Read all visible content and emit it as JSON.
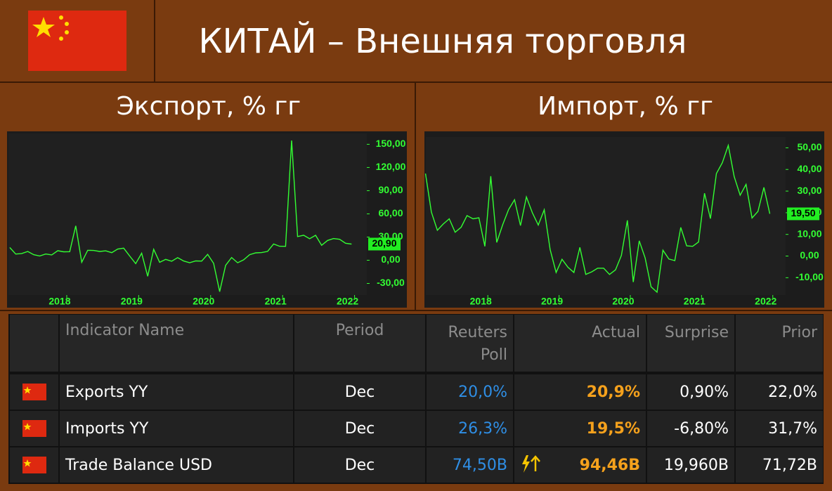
{
  "header": {
    "title": "КИТАЙ – Внешняя торговля"
  },
  "chart_data": [
    {
      "type": "line",
      "title": "Экспорт, % гг",
      "color": "#33ff33",
      "x": [
        "2017-03",
        "2017-04",
        "2017-05",
        "2017-06",
        "2017-07",
        "2017-08",
        "2017-09",
        "2017-10",
        "2017-11",
        "2017-12",
        "2018-01",
        "2018-02",
        "2018-03",
        "2018-04",
        "2018-05",
        "2018-06",
        "2018-07",
        "2018-08",
        "2018-09",
        "2018-10",
        "2018-11",
        "2018-12",
        "2019-01",
        "2019-02",
        "2019-03",
        "2019-04",
        "2019-05",
        "2019-06",
        "2019-07",
        "2019-08",
        "2019-09",
        "2019-10",
        "2019-11",
        "2019-12",
        "2020-01",
        "2020-02",
        "2020-03",
        "2020-04",
        "2020-05",
        "2020-06",
        "2020-07",
        "2020-08",
        "2020-09",
        "2020-10",
        "2020-11",
        "2020-12",
        "2021-01",
        "2021-02",
        "2021-03",
        "2021-04",
        "2021-05",
        "2021-06",
        "2021-07",
        "2021-08",
        "2021-09",
        "2021-10",
        "2021-11",
        "2021-12"
      ],
      "values": [
        16.4,
        8.0,
        8.7,
        11.3,
        7.2,
        5.5,
        8.1,
        6.9,
        12.3,
        10.9,
        11.1,
        44.5,
        -2.7,
        12.9,
        12.6,
        11.3,
        12.2,
        9.8,
        14.5,
        15.6,
        5.4,
        -4.4,
        9.1,
        -20.7,
        14.2,
        -2.7,
        1.1,
        -1.3,
        3.3,
        -1.0,
        -3.2,
        -0.9,
        -1.1,
        7.6,
        -4.0,
        -40.6,
        -6.6,
        3.5,
        -3.3,
        0.5,
        7.2,
        9.5,
        9.9,
        11.4,
        21.1,
        18.1,
        18.0,
        154.9,
        30.6,
        32.3,
        27.9,
        32.2,
        19.3,
        25.6,
        28.1,
        27.1,
        22.0,
        20.9
      ],
      "value_labels": [
        null,
        null,
        null,
        null,
        null,
        null,
        null,
        null,
        null,
        null,
        null,
        null,
        null,
        null,
        null,
        null,
        null,
        null,
        null,
        null,
        null,
        null,
        null,
        null,
        null,
        null,
        null,
        null,
        null,
        null,
        null,
        null,
        null,
        null,
        null,
        null,
        null,
        null,
        null,
        null,
        null,
        null,
        null,
        null,
        null,
        null,
        null,
        null,
        null,
        null,
        null,
        null,
        null,
        null,
        null,
        null,
        null,
        "20,90"
      ],
      "xlim": [
        2017.19,
        2022.17
      ],
      "xticks": [
        2018,
        2019,
        2020,
        2021,
        2022
      ],
      "ylim": [
        -45,
        164
      ],
      "yticks": [
        {
          "value": -30,
          "label": "-30,00"
        },
        {
          "value": 0,
          "label": "0,00"
        },
        {
          "value": 30,
          "label": "30,00"
        },
        {
          "value": 60,
          "label": "60,00"
        },
        {
          "value": 90,
          "label": "90,00"
        },
        {
          "value": 120,
          "label": "120,00"
        },
        {
          "value": 150,
          "label": "150,00"
        }
      ]
    },
    {
      "type": "line",
      "title": "Импорт, % гг",
      "color": "#33ff33",
      "x": [
        "2017-02",
        "2017-03",
        "2017-04",
        "2017-05",
        "2017-06",
        "2017-07",
        "2017-08",
        "2017-09",
        "2017-10",
        "2017-11",
        "2017-12",
        "2018-01",
        "2018-02",
        "2018-03",
        "2018-04",
        "2018-05",
        "2018-06",
        "2018-07",
        "2018-08",
        "2018-09",
        "2018-10",
        "2018-11",
        "2018-12",
        "2019-01",
        "2019-02",
        "2019-03",
        "2019-04",
        "2019-05",
        "2019-06",
        "2019-07",
        "2019-08",
        "2019-09",
        "2019-10",
        "2019-11",
        "2019-12",
        "2020-01",
        "2020-02",
        "2020-03",
        "2020-04",
        "2020-05",
        "2020-06",
        "2020-07",
        "2020-08",
        "2020-09",
        "2020-10",
        "2020-11",
        "2020-12",
        "2021-01",
        "2021-02",
        "2021-03",
        "2021-04",
        "2021-05",
        "2021-06",
        "2021-07",
        "2021-08",
        "2021-09",
        "2021-10",
        "2021-11",
        "2021-12"
      ],
      "values": [
        38.1,
        20.3,
        11.9,
        14.8,
        17.2,
        11.0,
        13.3,
        18.7,
        17.2,
        17.7,
        4.5,
        36.9,
        6.3,
        14.4,
        21.5,
        26.0,
        14.1,
        27.3,
        20.0,
        14.3,
        21.4,
        3.0,
        -7.6,
        -1.5,
        -5.2,
        -7.6,
        4.0,
        -8.5,
        -7.3,
        -5.6,
        -5.6,
        -8.5,
        -6.4,
        0.3,
        16.5,
        -12.0,
        7.0,
        -0.9,
        -14.2,
        -16.7,
        2.7,
        -1.4,
        -2.1,
        13.2,
        4.7,
        4.5,
        6.5,
        29.0,
        17.3,
        38.1,
        43.1,
        51.1,
        36.7,
        28.1,
        33.1,
        17.6,
        20.6,
        31.7,
        19.5
      ],
      "value_labels": [
        null,
        null,
        null,
        null,
        null,
        null,
        null,
        null,
        null,
        null,
        null,
        null,
        null,
        null,
        null,
        null,
        null,
        null,
        null,
        null,
        null,
        null,
        null,
        null,
        null,
        null,
        null,
        null,
        null,
        null,
        null,
        null,
        null,
        null,
        null,
        null,
        null,
        null,
        null,
        null,
        null,
        null,
        null,
        null,
        null,
        null,
        null,
        null,
        null,
        null,
        null,
        null,
        null,
        null,
        null,
        null,
        null,
        null,
        "19,50"
      ],
      "xlim": [
        2017.13,
        2022.18
      ],
      "xticks": [
        2018,
        2019,
        2020,
        2021,
        2022
      ],
      "ylim": [
        -18,
        55
      ],
      "yticks": [
        {
          "value": -10,
          "label": "-10,00"
        },
        {
          "value": 0,
          "label": "0,00"
        },
        {
          "value": 10,
          "label": "10,00"
        },
        {
          "value": 20,
          "label": "20,00"
        },
        {
          "value": 30,
          "label": "30,00"
        },
        {
          "value": 40,
          "label": "40,00"
        },
        {
          "value": 50,
          "label": "50,00"
        }
      ]
    }
  ],
  "table": {
    "headers": [
      "Indicator Name",
      "Period",
      "Reuters Poll",
      "Actual",
      "Surprise",
      "Prior"
    ],
    "rows": [
      [
        "Exports YY",
        "Dec",
        "20,0%",
        "20,9%",
        "0,90%",
        "22,0%"
      ],
      [
        "Imports YY",
        "Dec",
        "26,3%",
        "19,5%",
        "-6,80%",
        "31,7%"
      ],
      [
        "Trade Balance USD",
        "Dec",
        "74,50B",
        "94,46B",
        "19,960B",
        "71,72B"
      ]
    ]
  }
}
